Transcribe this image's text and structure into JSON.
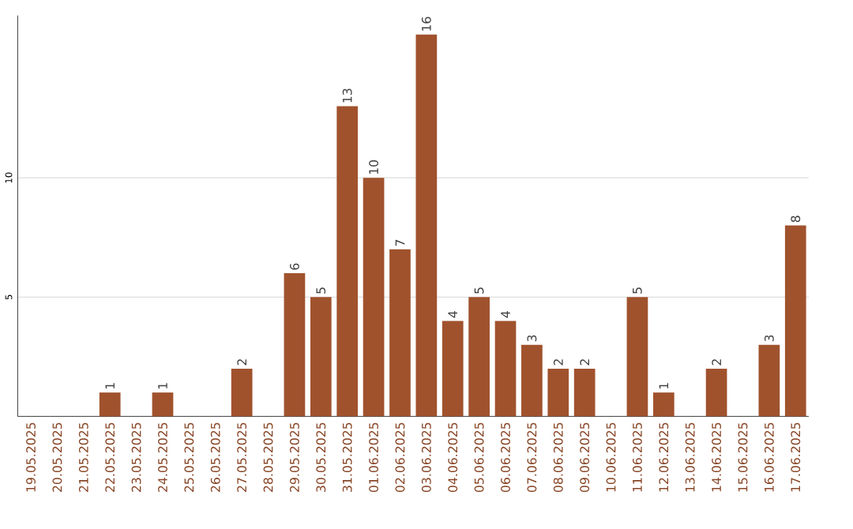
{
  "chart_data": {
    "type": "bar",
    "categories": [
      "19.05.2025",
      "20.05.2025",
      "21.05.2025",
      "22.05.2025",
      "23.05.2025",
      "24.05.2025",
      "25.05.2025",
      "26.05.2025",
      "27.05.2025",
      "28.05.2025",
      "29.05.2025",
      "30.05.2025",
      "31.05.2025",
      "01.06.2025",
      "02.06.2025",
      "03.06.2025",
      "04.06.2025",
      "05.06.2025",
      "06.06.2025",
      "07.06.2025",
      "08.06.2025",
      "09.06.2025",
      "10.06.2025",
      "11.06.2025",
      "12.06.2025",
      "13.06.2025",
      "14.06.2025",
      "15.06.2025",
      "16.06.2025",
      "17.06.2025"
    ],
    "values": [
      0,
      0,
      0,
      1,
      0,
      1,
      0,
      0,
      2,
      0,
      6,
      5,
      13,
      10,
      7,
      16,
      4,
      5,
      4,
      3,
      2,
      2,
      0,
      5,
      1,
      0,
      2,
      0,
      3,
      8
    ],
    "value_labels": [
      null,
      null,
      null,
      "1",
      null,
      "1",
      null,
      null,
      "2",
      null,
      "6",
      "5",
      "13",
      "10",
      "7",
      "16",
      "4",
      "5",
      "4",
      "3",
      "2",
      "2",
      null,
      "5",
      "1",
      null,
      "2",
      null,
      "3",
      "8"
    ],
    "color": "#a0522d",
    "ylim": [
      0,
      16.8
    ],
    "yticks": [
      5,
      10
    ],
    "grid": "y"
  }
}
